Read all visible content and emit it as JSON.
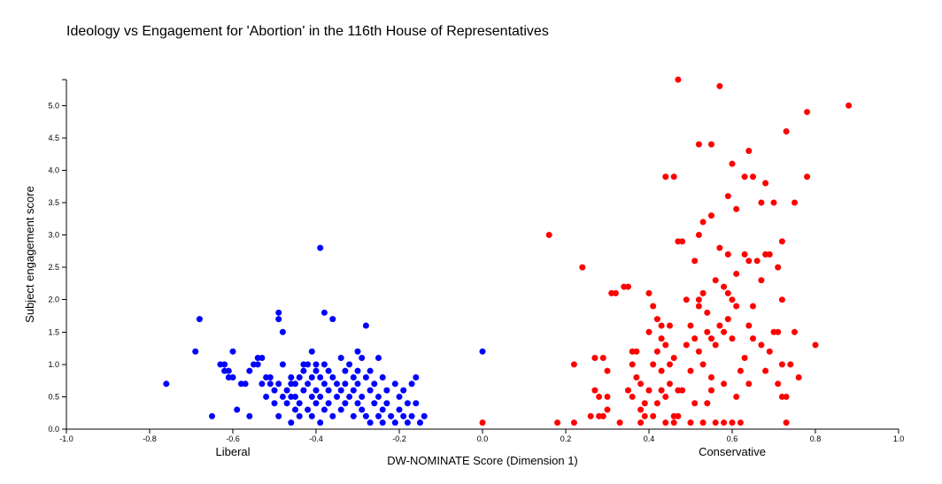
{
  "chart_data": {
    "type": "scatter",
    "title": "Ideology vs Engagement for 'Abortion' in the 116th House of Representatives",
    "xlabel": "DW-NOMINATE Score (Dimension 1)",
    "ylabel": "Subject engagement score",
    "xlim": [
      -1.0,
      1.0
    ],
    "ylim": [
      0,
      5.4
    ],
    "x_ticks": [
      "-1.0",
      "-0.8",
      "-0.6",
      "-0.4",
      "-0.2",
      "0.0",
      "0.2",
      "0.4",
      "0.6",
      "0.8",
      "1.0"
    ],
    "y_ticks": [
      "0.0",
      "0.5",
      "1.0",
      "1.5",
      "2.0",
      "2.5",
      "3.0",
      "3.5",
      "4.0",
      "4.5",
      "5.0"
    ],
    "annotations": [
      {
        "text": "Liberal",
        "x": -0.6
      },
      {
        "text": "Conservative",
        "x": 0.6
      }
    ],
    "grid": false,
    "legend": "none",
    "series": [
      {
        "color": "#0000ff",
        "points": [
          [
            -0.76,
            0.7
          ],
          [
            -0.69,
            1.2
          ],
          [
            -0.68,
            1.7
          ],
          [
            -0.65,
            0.2
          ],
          [
            -0.63,
            1.0
          ],
          [
            -0.62,
            0.9
          ],
          [
            -0.62,
            1.0
          ],
          [
            -0.61,
            0.8
          ],
          [
            -0.61,
            0.9
          ],
          [
            -0.6,
            0.8
          ],
          [
            -0.6,
            1.2
          ],
          [
            -0.59,
            0.3
          ],
          [
            -0.58,
            0.7
          ],
          [
            -0.57,
            0.7
          ],
          [
            -0.56,
            0.2
          ],
          [
            -0.56,
            0.9
          ],
          [
            -0.55,
            1.0
          ],
          [
            -0.54,
            1.0
          ],
          [
            -0.54,
            1.1
          ],
          [
            -0.53,
            0.7
          ],
          [
            -0.53,
            1.1
          ],
          [
            -0.52,
            0.5
          ],
          [
            -0.52,
            0.8
          ],
          [
            -0.51,
            0.7
          ],
          [
            -0.51,
            0.8
          ],
          [
            -0.5,
            0.6
          ],
          [
            -0.5,
            0.4
          ],
          [
            -0.49,
            1.8
          ],
          [
            -0.49,
            1.7
          ],
          [
            -0.49,
            0.2
          ],
          [
            -0.49,
            0.7
          ],
          [
            -0.48,
            1.5
          ],
          [
            -0.48,
            0.5
          ],
          [
            -0.48,
            1.0
          ],
          [
            -0.47,
            0.4
          ],
          [
            -0.47,
            0.6
          ],
          [
            -0.46,
            0.1
          ],
          [
            -0.46,
            0.5
          ],
          [
            -0.46,
            0.7
          ],
          [
            -0.46,
            0.8
          ],
          [
            -0.45,
            0.3
          ],
          [
            -0.45,
            0.7
          ],
          [
            -0.45,
            0.5
          ],
          [
            -0.44,
            0.4
          ],
          [
            -0.44,
            0.8
          ],
          [
            -0.44,
            0.2
          ],
          [
            -0.43,
            0.9
          ],
          [
            -0.43,
            0.6
          ],
          [
            -0.43,
            1.0
          ],
          [
            -0.42,
            0.3
          ],
          [
            -0.42,
            0.7
          ],
          [
            -0.42,
            1.0
          ],
          [
            -0.41,
            0.5
          ],
          [
            -0.41,
            0.8
          ],
          [
            -0.41,
            0.2
          ],
          [
            -0.41,
            1.2
          ],
          [
            -0.4,
            0.6
          ],
          [
            -0.4,
            0.4
          ],
          [
            -0.4,
            0.9
          ],
          [
            -0.4,
            1.0
          ],
          [
            -0.39,
            0.1
          ],
          [
            -0.39,
            0.5
          ],
          [
            -0.39,
            0.8
          ],
          [
            -0.39,
            2.8
          ],
          [
            -0.38,
            1.8
          ],
          [
            -0.38,
            0.3
          ],
          [
            -0.38,
            0.7
          ],
          [
            -0.38,
            1.0
          ],
          [
            -0.37,
            0.6
          ],
          [
            -0.37,
            0.4
          ],
          [
            -0.37,
            0.9
          ],
          [
            -0.36,
            0.2
          ],
          [
            -0.36,
            1.7
          ],
          [
            -0.36,
            0.8
          ],
          [
            -0.35,
            0.5
          ],
          [
            -0.35,
            0.7
          ],
          [
            -0.34,
            1.1
          ],
          [
            -0.34,
            0.3
          ],
          [
            -0.34,
            0.6
          ],
          [
            -0.33,
            0.9
          ],
          [
            -0.33,
            0.4
          ],
          [
            -0.33,
            0.7
          ],
          [
            -0.32,
            1.0
          ],
          [
            -0.32,
            0.5
          ],
          [
            -0.31,
            0.2
          ],
          [
            -0.31,
            0.8
          ],
          [
            -0.31,
            0.6
          ],
          [
            -0.3,
            0.9
          ],
          [
            -0.3,
            1.2
          ],
          [
            -0.3,
            0.4
          ],
          [
            -0.3,
            0.7
          ],
          [
            -0.29,
            0.3
          ],
          [
            -0.29,
            0.5
          ],
          [
            -0.29,
            1.1
          ],
          [
            -0.28,
            0.8
          ],
          [
            -0.28,
            0.2
          ],
          [
            -0.28,
            1.6
          ],
          [
            -0.27,
            0.6
          ],
          [
            -0.27,
            0.1
          ],
          [
            -0.27,
            0.9
          ],
          [
            -0.26,
            0.4
          ],
          [
            -0.26,
            0.7
          ],
          [
            -0.25,
            0.2
          ],
          [
            -0.25,
            1.1
          ],
          [
            -0.25,
            0.5
          ],
          [
            -0.24,
            0.3
          ],
          [
            -0.24,
            0.8
          ],
          [
            -0.24,
            0.1
          ],
          [
            -0.23,
            0.6
          ],
          [
            -0.23,
            0.4
          ],
          [
            -0.22,
            0.2
          ],
          [
            -0.21,
            0.7
          ],
          [
            -0.21,
            0.1
          ],
          [
            -0.2,
            0.5
          ],
          [
            -0.2,
            0.3
          ],
          [
            -0.19,
            0.2
          ],
          [
            -0.19,
            0.6
          ],
          [
            -0.18,
            0.4
          ],
          [
            -0.18,
            0.1
          ],
          [
            -0.17,
            0.7
          ],
          [
            -0.17,
            0.2
          ],
          [
            -0.16,
            0.8
          ],
          [
            -0.16,
            0.4
          ],
          [
            -0.15,
            0.1
          ],
          [
            -0.14,
            0.2
          ],
          [
            0.0,
            1.2
          ]
        ]
      },
      {
        "color": "#ff0000",
        "points": [
          [
            0.0,
            0.1
          ],
          [
            0.16,
            3.0
          ],
          [
            0.18,
            0.1
          ],
          [
            0.22,
            0.1
          ],
          [
            0.22,
            1.0
          ],
          [
            0.24,
            2.5
          ],
          [
            0.26,
            0.2
          ],
          [
            0.27,
            0.6
          ],
          [
            0.27,
            1.1
          ],
          [
            0.28,
            0.2
          ],
          [
            0.28,
            0.5
          ],
          [
            0.29,
            1.1
          ],
          [
            0.29,
            0.2
          ],
          [
            0.3,
            0.9
          ],
          [
            0.3,
            0.5
          ],
          [
            0.3,
            0.3
          ],
          [
            0.31,
            2.1
          ],
          [
            0.32,
            2.1
          ],
          [
            0.33,
            0.1
          ],
          [
            0.34,
            2.2
          ],
          [
            0.35,
            2.2
          ],
          [
            0.35,
            0.6
          ],
          [
            0.36,
            0.5
          ],
          [
            0.36,
            1.2
          ],
          [
            0.36,
            1.0
          ],
          [
            0.37,
            0.8
          ],
          [
            0.37,
            1.2
          ],
          [
            0.38,
            0.3
          ],
          [
            0.38,
            0.7
          ],
          [
            0.38,
            0.1
          ],
          [
            0.39,
            0.4
          ],
          [
            0.39,
            0.2
          ],
          [
            0.4,
            1.5
          ],
          [
            0.4,
            0.6
          ],
          [
            0.4,
            2.1
          ],
          [
            0.41,
            1.9
          ],
          [
            0.41,
            1.0
          ],
          [
            0.41,
            0.2
          ],
          [
            0.42,
            0.4
          ],
          [
            0.42,
            1.2
          ],
          [
            0.42,
            1.7
          ],
          [
            0.43,
            0.6
          ],
          [
            0.43,
            0.9
          ],
          [
            0.43,
            1.4
          ],
          [
            0.43,
            1.6
          ],
          [
            0.44,
            0.1
          ],
          [
            0.44,
            3.9
          ],
          [
            0.44,
            1.3
          ],
          [
            0.44,
            0.5
          ],
          [
            0.45,
            1.6
          ],
          [
            0.45,
            0.7
          ],
          [
            0.45,
            1.0
          ],
          [
            0.46,
            3.9
          ],
          [
            0.46,
            0.2
          ],
          [
            0.46,
            1.1
          ],
          [
            0.46,
            0.1
          ],
          [
            0.47,
            5.4
          ],
          [
            0.47,
            0.6
          ],
          [
            0.47,
            2.9
          ],
          [
            0.47,
            0.2
          ],
          [
            0.48,
            2.9
          ],
          [
            0.48,
            0.6
          ],
          [
            0.49,
            2.0
          ],
          [
            0.49,
            1.3
          ],
          [
            0.5,
            1.6
          ],
          [
            0.5,
            0.9
          ],
          [
            0.5,
            0.1
          ],
          [
            0.51,
            1.4
          ],
          [
            0.51,
            0.4
          ],
          [
            0.51,
            2.6
          ],
          [
            0.52,
            4.4
          ],
          [
            0.52,
            1.2
          ],
          [
            0.52,
            2.0
          ],
          [
            0.52,
            1.9
          ],
          [
            0.52,
            3.0
          ],
          [
            0.53,
            1.0
          ],
          [
            0.53,
            2.1
          ],
          [
            0.53,
            3.2
          ],
          [
            0.53,
            0.1
          ],
          [
            0.54,
            1.5
          ],
          [
            0.54,
            1.8
          ],
          [
            0.54,
            0.4
          ],
          [
            0.55,
            1.4
          ],
          [
            0.55,
            4.4
          ],
          [
            0.55,
            3.3
          ],
          [
            0.55,
            0.6
          ],
          [
            0.55,
            0.8
          ],
          [
            0.56,
            0.1
          ],
          [
            0.56,
            2.3
          ],
          [
            0.56,
            1.3
          ],
          [
            0.57,
            5.3
          ],
          [
            0.57,
            1.6
          ],
          [
            0.57,
            2.8
          ],
          [
            0.58,
            2.2
          ],
          [
            0.58,
            1.5
          ],
          [
            0.58,
            0.1
          ],
          [
            0.58,
            0.7
          ],
          [
            0.59,
            3.6
          ],
          [
            0.59,
            2.1
          ],
          [
            0.59,
            2.7
          ],
          [
            0.59,
            1.7
          ],
          [
            0.6,
            4.1
          ],
          [
            0.6,
            0.1
          ],
          [
            0.6,
            1.4
          ],
          [
            0.6,
            2.0
          ],
          [
            0.61,
            3.4
          ],
          [
            0.61,
            1.9
          ],
          [
            0.61,
            0.5
          ],
          [
            0.61,
            2.4
          ],
          [
            0.62,
            0.9
          ],
          [
            0.62,
            0.1
          ],
          [
            0.63,
            3.9
          ],
          [
            0.63,
            2.7
          ],
          [
            0.63,
            1.1
          ],
          [
            0.64,
            4.3
          ],
          [
            0.64,
            1.6
          ],
          [
            0.64,
            2.6
          ],
          [
            0.64,
            0.7
          ],
          [
            0.65,
            1.9
          ],
          [
            0.65,
            3.9
          ],
          [
            0.65,
            1.4
          ],
          [
            0.66,
            2.6
          ],
          [
            0.67,
            3.5
          ],
          [
            0.67,
            2.3
          ],
          [
            0.67,
            1.3
          ],
          [
            0.68,
            2.7
          ],
          [
            0.68,
            0.9
          ],
          [
            0.68,
            3.8
          ],
          [
            0.69,
            2.7
          ],
          [
            0.69,
            1.2
          ],
          [
            0.7,
            3.5
          ],
          [
            0.7,
            1.5
          ],
          [
            0.71,
            2.5
          ],
          [
            0.71,
            0.7
          ],
          [
            0.71,
            1.5
          ],
          [
            0.72,
            1.0
          ],
          [
            0.72,
            2.9
          ],
          [
            0.72,
            0.5
          ],
          [
            0.72,
            2.0
          ],
          [
            0.73,
            0.1
          ],
          [
            0.73,
            4.6
          ],
          [
            0.73,
            0.5
          ],
          [
            0.74,
            1.0
          ],
          [
            0.75,
            3.5
          ],
          [
            0.75,
            1.5
          ],
          [
            0.76,
            0.8
          ],
          [
            0.78,
            4.9
          ],
          [
            0.78,
            3.9
          ],
          [
            0.8,
            1.3
          ],
          [
            0.88,
            5.0
          ]
        ]
      }
    ]
  }
}
